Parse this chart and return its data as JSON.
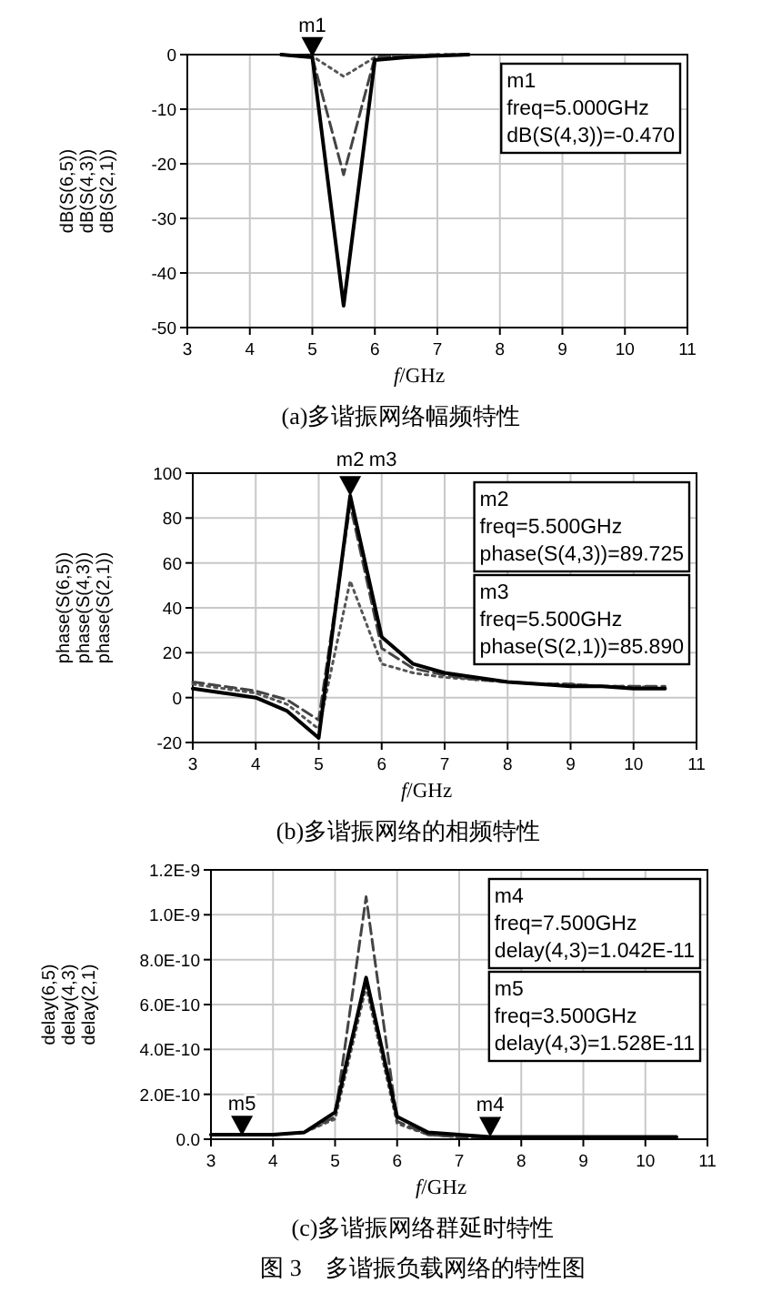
{
  "chart_data": [
    {
      "type": "line",
      "title": "(a)多谐振网络幅频特性",
      "xlabel": "*f*/GHz",
      "ylabel": "dB(S(6,5))\ndB(S(4,3))\ndB(S(2,1))",
      "xlim": [
        3,
        11
      ],
      "xticks": [
        3,
        4,
        5,
        6,
        7,
        8,
        9,
        10,
        11
      ],
      "ylim": [
        -50,
        0
      ],
      "yticks": [
        -50,
        -40,
        -30,
        -20,
        -10,
        0
      ],
      "grid": true,
      "x": [
        4.5,
        5,
        5.5,
        6,
        6.5,
        7,
        7.5
      ],
      "series": [
        {
          "color": "#000000",
          "line_style": "solid",
          "values": [
            0,
            -0.5,
            -46,
            -1,
            -0.5,
            -0.2,
            0
          ]
        },
        {
          "color": "#444444",
          "line_style": "dashed",
          "values": [
            0,
            -0.5,
            -22,
            -0.5,
            -0.2,
            0,
            0
          ]
        },
        {
          "color": "#555555",
          "line_style": "dotted",
          "values": [
            0,
            -0.3,
            -4,
            -0.5,
            -0.2,
            0,
            0
          ]
        }
      ],
      "annotations": [
        {
          "text": "m1",
          "x": 5,
          "y": -0.47
        },
        "m1\nfreq=5.000GHz\ndB(S(4,3))=-0.470"
      ]
    },
    {
      "type": "line",
      "title": "(b)多谐振网络的相频特性",
      "xlabel": "*f*/GHz",
      "ylabel": "phase(S(6,5))\nphase(S(4,3))\nphase(S(2,1))",
      "xlim": [
        3,
        11
      ],
      "xticks": [
        3,
        4,
        5,
        6,
        7,
        8,
        9,
        10,
        11
      ],
      "ylim": [
        -20,
        100
      ],
      "yticks": [
        -20,
        0,
        20,
        40,
        60,
        80,
        100
      ],
      "grid": true,
      "x": [
        3,
        3.5,
        4,
        4.5,
        5,
        5.5,
        6,
        6.5,
        7,
        7.5,
        8,
        8.5,
        9,
        9.5,
        10,
        10.5
      ],
      "series": [
        {
          "color": "#000000",
          "line_style": "solid",
          "values": [
            4,
            2,
            0,
            -6,
            -18,
            90,
            27,
            15,
            11,
            9,
            7,
            6,
            5,
            5,
            4,
            4
          ]
        },
        {
          "color": "#444444",
          "line_style": "dashed",
          "values": [
            7,
            5,
            3,
            -1,
            -10,
            86,
            22,
            13,
            10,
            8,
            7,
            6,
            6,
            5,
            5,
            5
          ]
        },
        {
          "color": "#555555",
          "line_style": "dotted",
          "values": [
            6,
            4,
            2,
            -3,
            -14,
            52,
            15,
            11,
            9,
            8,
            7,
            6,
            6,
            5,
            5,
            4
          ]
        }
      ],
      "annotations": [
        {
          "text": "m2",
          "x": 5.5,
          "y": 89.725
        },
        {
          "text": "m3",
          "x": 5.5,
          "y": 85.89
        },
        "m2\nfreq=5.500GHz\nphase(S(4,3))=89.725",
        "m3\nfreq=5.500GHz\nphase(S(2,1))=85.890"
      ]
    },
    {
      "type": "line",
      "title": "(c)多谐振网络群延时特性",
      "xlabel": "*f*/GHz",
      "ylabel": "delay(6,5)\ndelay(4,3)\ndelay(2,1)",
      "xlim": [
        3,
        11
      ],
      "xticks": [
        3,
        4,
        5,
        6,
        7,
        8,
        9,
        10,
        11
      ],
      "ylim": [
        0,
        1.2e-09
      ],
      "yticks": [
        {
          "value": 0,
          "label": "0.0"
        },
        {
          "value": 2e-10,
          "label": "2.0E-10"
        },
        {
          "value": 4e-10,
          "label": "4.0E-10"
        },
        {
          "value": 6e-10,
          "label": "6.0E-10"
        },
        {
          "value": 8e-10,
          "label": "8.0E-10"
        },
        {
          "value": 1e-09,
          "label": "1.0E-9"
        },
        {
          "value": 1.2e-09,
          "label": "1.2E-9"
        }
      ],
      "grid": true,
      "x": [
        3,
        3.5,
        4,
        4.5,
        5,
        5.5,
        6,
        6.5,
        7,
        7.5,
        8,
        8.5,
        9,
        9.5,
        10,
        10.5
      ],
      "series": [
        {
          "color": "#000000",
          "line_style": "solid",
          "values": [
            2e-11,
            2e-11,
            2e-11,
            3e-11,
            1.2e-10,
            7.2e-10,
            1e-10,
            3e-11,
            2e-11,
            1e-11,
            1e-11,
            1e-11,
            1e-11,
            1e-11,
            1e-11,
            1e-11
          ]
        },
        {
          "color": "#444444",
          "line_style": "dashed",
          "values": [
            2e-11,
            2e-11,
            2e-11,
            3e-11,
            1e-10,
            1.08e-09,
            8e-11,
            2e-11,
            1e-11,
            1e-11,
            1e-11,
            1e-11,
            1e-11,
            1e-11,
            1e-11,
            1e-11
          ]
        },
        {
          "color": "#555555",
          "line_style": "dotted",
          "values": [
            2e-11,
            2e-11,
            2e-11,
            3e-11,
            9e-11,
            6.8e-10,
            7e-11,
            2e-11,
            1e-11,
            1e-11,
            1e-11,
            1e-11,
            1e-11,
            1e-11,
            1e-11,
            1e-11
          ]
        }
      ],
      "annotations": [
        {
          "text": "m4",
          "x": 7.5,
          "y": 1.042e-11
        },
        {
          "text": "m5",
          "x": 3.5,
          "y": 1.528e-11
        },
        "m4\nfreq=7.500GHz\ndelay(4,3)=1.042E-11",
        "m5\nfreq=3.500GHz\ndelay(4,3)=1.528E-11",
        "图 3　多谐振负载网络的特性图"
      ]
    }
  ]
}
